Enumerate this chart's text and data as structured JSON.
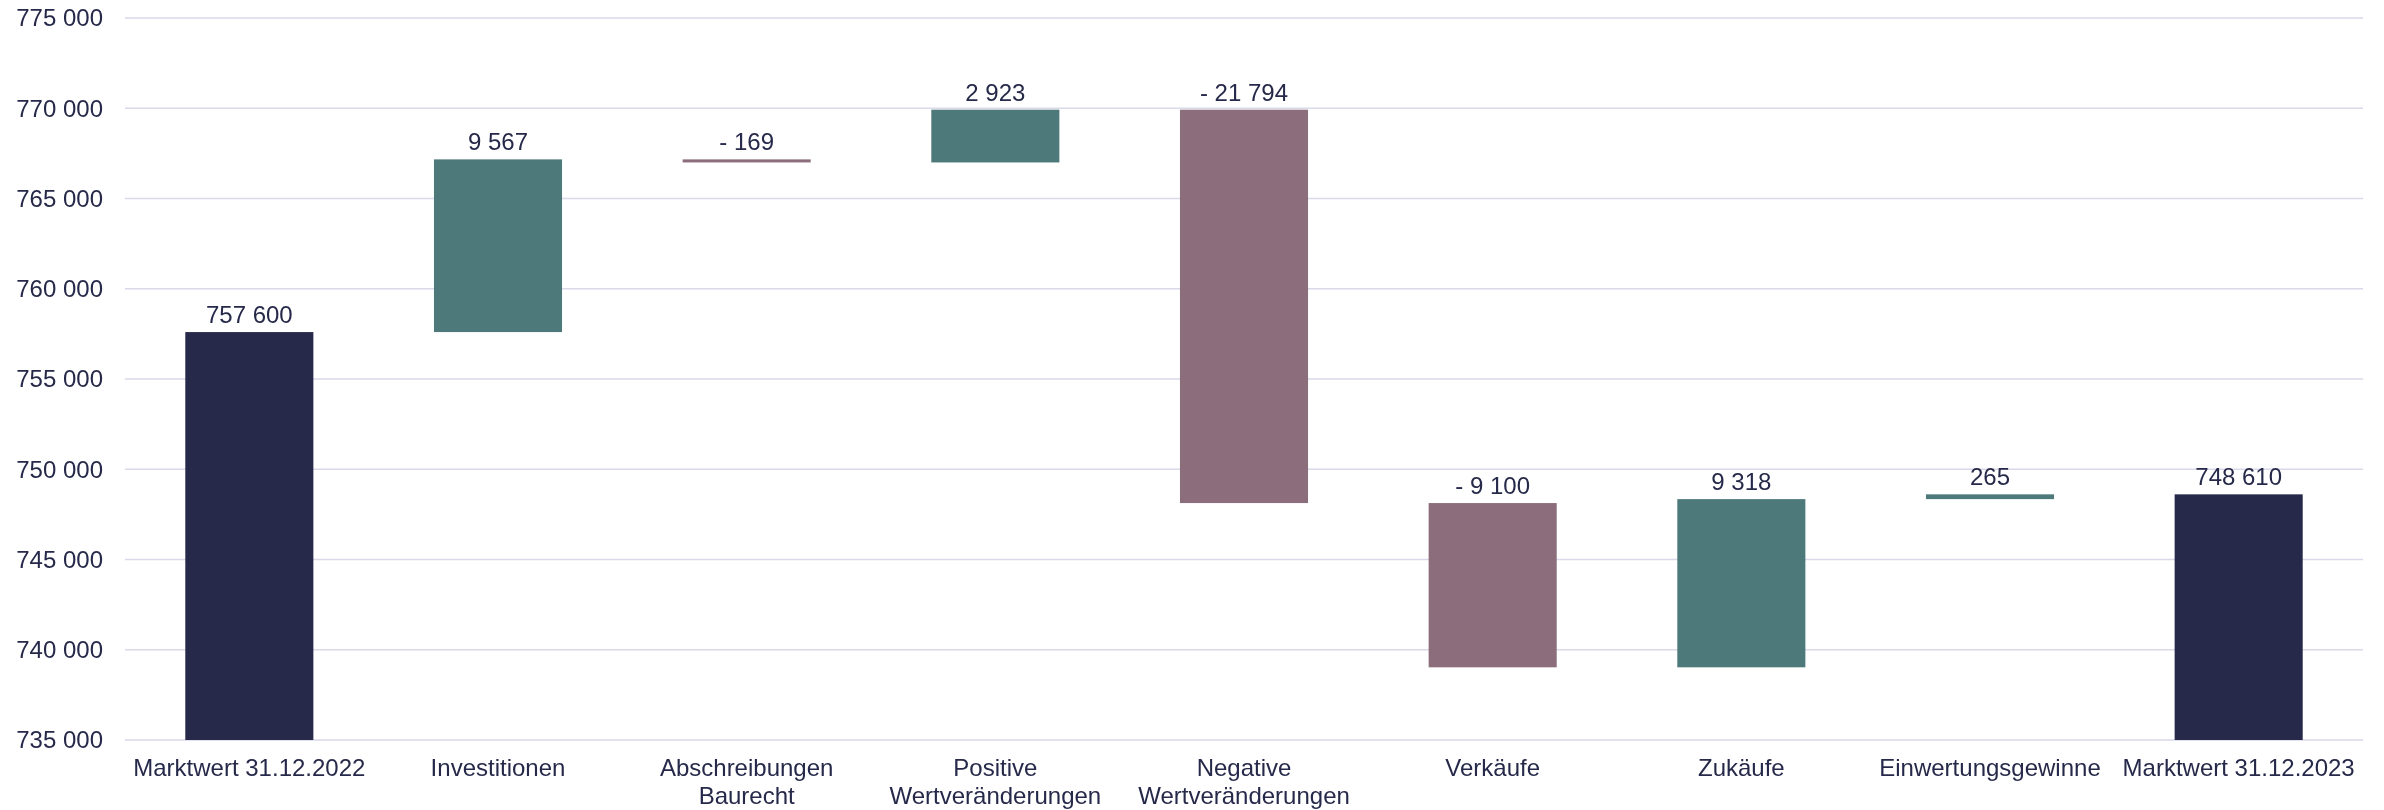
{
  "chart_data": {
    "type": "bar",
    "categories": [
      "Marktwert 31.12.2022",
      "Investitionen",
      "Abschreibungen Baurecht",
      "Positive Wertveränderungen",
      "Negative Wertveränderungen",
      "Verkäufe",
      "Zukäufe",
      "Einwertungsgewinne",
      "Marktwert 31.12.2023"
    ],
    "values": [
      757600,
      9567,
      -169,
      2923,
      -21794,
      -9100,
      9318,
      265,
      748610
    ],
    "base": [
      null,
      757600,
      767167,
      766998,
      769921,
      748127,
      739027,
      748345,
      null
    ],
    "colors": [
      "#262949",
      "#4d797b",
      "#8b6d7b",
      "#4d797b",
      "#8b6d7b",
      "#8b6d7b",
      "#4d797b",
      "#4d797b",
      "#262949"
    ],
    "value_labels": [
      "757 600",
      "9 567",
      "- 169",
      "2 923",
      "- 21 794",
      "- 9 100",
      "9 318",
      "265",
      "748 610"
    ],
    "ylim": [
      735000,
      775000
    ],
    "yticks": [
      {
        "value": 735000,
        "label": "735 000"
      },
      {
        "value": 740000,
        "label": "740 000"
      },
      {
        "value": 745000,
        "label": "745 000"
      },
      {
        "value": 750000,
        "label": "750 000"
      },
      {
        "value": 755000,
        "label": "755 000"
      },
      {
        "value": 760000,
        "label": "760 000"
      },
      {
        "value": 765000,
        "label": "765 000"
      },
      {
        "value": 770000,
        "label": "770 000"
      },
      {
        "value": 775000,
        "label": "775 000"
      }
    ],
    "grid": "y"
  }
}
